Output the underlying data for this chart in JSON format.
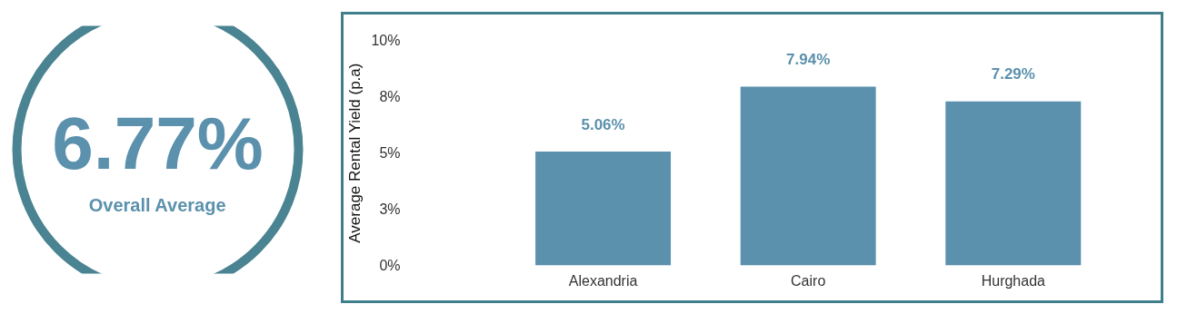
{
  "chart_data": [
    {
      "type": "other",
      "title": "6.77%",
      "subtitle": "Overall Average"
    },
    {
      "type": "bar",
      "ylabel": "Average Rental Yield (p.a)",
      "categories": [
        "Alexandria",
        "Cairo",
        "Hurghada"
      ],
      "values": [
        5.06,
        7.94,
        7.29
      ],
      "color": "#5b91ad",
      "value_labels": [
        "5.06%",
        "7.94%",
        "7.29%"
      ],
      "ylim": [
        0,
        10
      ],
      "yticks": [
        {
          "value": 0,
          "label": "0%"
        },
        {
          "value": 2.5,
          "label": "3%"
        },
        {
          "value": 5,
          "label": "5%"
        },
        {
          "value": 7.5,
          "label": "8%"
        },
        {
          "value": 10,
          "label": "10%"
        }
      ],
      "grid": false
    }
  ]
}
